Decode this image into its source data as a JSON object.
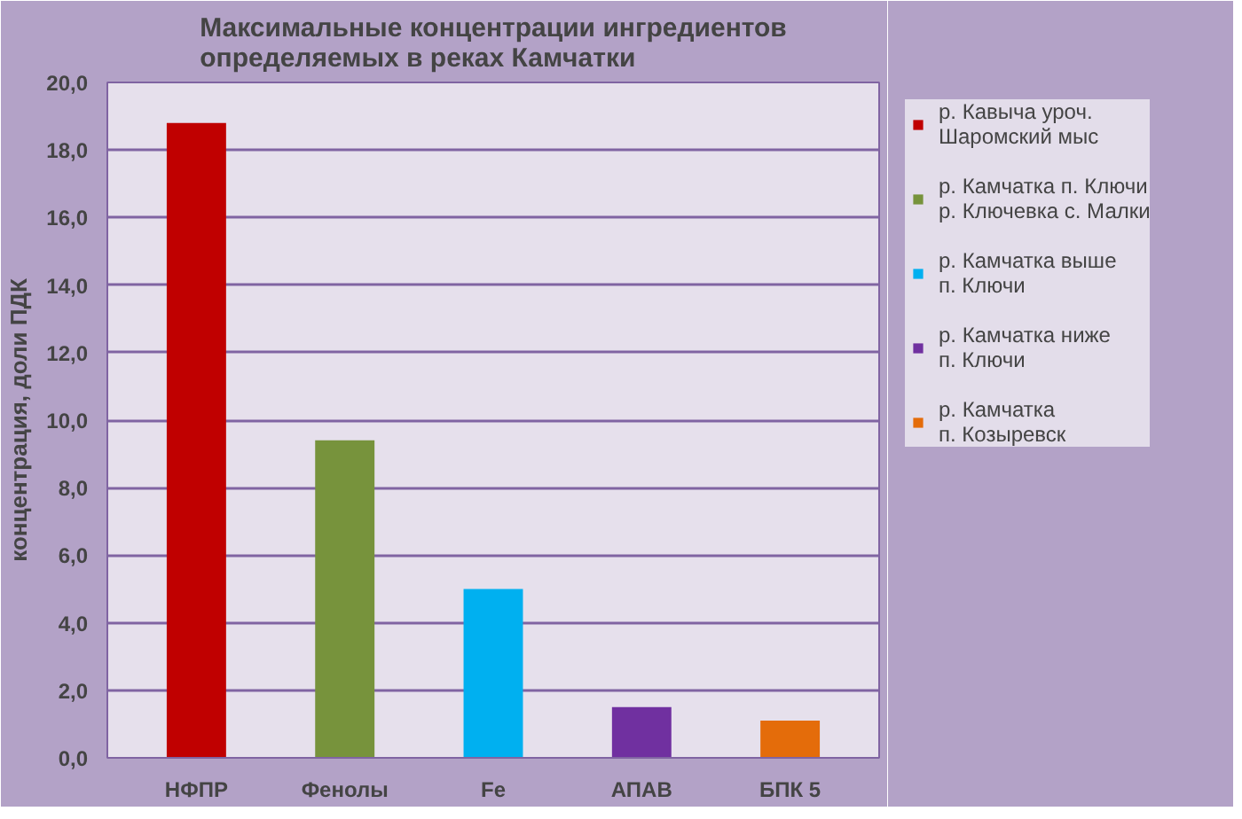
{
  "chart_data": {
    "type": "bar",
    "title": "Максимальные концентрации ингредиентов\nопределяемых в реках Камчатки",
    "ylabel": "концентрация, доли ПДК",
    "categories": [
      "НФПР",
      "Фенолы",
      "Fe",
      "АПАВ",
      "БПК 5"
    ],
    "series": [
      {
        "name": "р. Кавыча уроч.\nШаромский мыс",
        "color": "#c00000",
        "values": [
          18.8,
          null,
          null,
          null,
          null
        ]
      },
      {
        "name": "р. Камчатка п. Ключи\nр. Ключевка с. Малки",
        "color": "#77933c",
        "values": [
          null,
          9.4,
          null,
          null,
          null
        ]
      },
      {
        "name": "р. Камчатка выше\nп. Ключи",
        "color": "#00b0f0",
        "values": [
          null,
          null,
          5.0,
          null,
          null
        ]
      },
      {
        "name": "р. Камчатка ниже\nп. Ключи",
        "color": "#7030a0",
        "values": [
          null,
          null,
          null,
          1.5,
          null
        ]
      },
      {
        "name": "р. Камчатка\nп. Козыревск",
        "color": "#e46c0a",
        "values": [
          null,
          null,
          null,
          null,
          1.1
        ]
      }
    ],
    "ylim": [
      0,
      20
    ],
    "yticks": [
      {
        "value": 0,
        "label": "0,0"
      },
      {
        "value": 2,
        "label": "2,0"
      },
      {
        "value": 4,
        "label": "4,0"
      },
      {
        "value": 6,
        "label": "6,0"
      },
      {
        "value": 8,
        "label": "8,0"
      },
      {
        "value": 10,
        "label": "10,0"
      },
      {
        "value": 12,
        "label": "12,0"
      },
      {
        "value": 14,
        "label": "14,0"
      },
      {
        "value": 16,
        "label": "16,0"
      },
      {
        "value": 18,
        "label": "18,0"
      },
      {
        "value": 20,
        "label": "20,0"
      }
    ],
    "grid": "y",
    "legend": "right"
  }
}
